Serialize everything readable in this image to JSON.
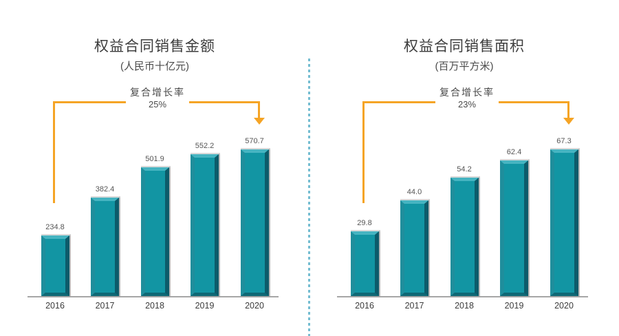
{
  "chart_data": [
    {
      "type": "bar",
      "title": "权益合同销售金额",
      "unit_label": "(人民币十亿元)",
      "cagr_label": "复合增长率",
      "cagr_value": "25%",
      "categories": [
        "2016",
        "2017",
        "2018",
        "2019",
        "2020"
      ],
      "values": [
        234.8,
        382.4,
        501.9,
        552.2,
        570.7
      ],
      "value_labels": [
        "234.8",
        "382.4",
        "501.9",
        "552.2",
        "570.7"
      ],
      "xlabel": "",
      "ylabel": "",
      "ylim": [
        0,
        600
      ],
      "grid": false,
      "legend": "none",
      "annotation": "复合增长率 25% (2016→2020)"
    },
    {
      "type": "bar",
      "title": "权益合同销售面积",
      "unit_label": "(百万平方米)",
      "cagr_label": "复合增长率",
      "cagr_value": "23%",
      "categories": [
        "2016",
        "2017",
        "2018",
        "2019",
        "2020"
      ],
      "values": [
        29.8,
        44.0,
        54.2,
        62.4,
        67.3
      ],
      "value_labels": [
        "29.8",
        "44.0",
        "54.2",
        "62.4",
        "67.3"
      ],
      "xlabel": "",
      "ylabel": "",
      "ylim": [
        0,
        70
      ],
      "grid": false,
      "legend": "none",
      "annotation": "复合增长率 23% (2016→2020)"
    }
  ],
  "colors": {
    "bar_face": "#1295A3",
    "bar_bevel_top": "#46B4C1",
    "bar_bevel_left": "#1F8E9C",
    "bar_bevel_right": "#0C5B6A",
    "bar_bevel_bottom": "#0E6875",
    "arrow_orange": "#F5A425",
    "axis_gray": "#A6A6A6",
    "divider_blue": "#74BDD1",
    "title_text": "#3C3C3C",
    "label_text": "#555555"
  }
}
